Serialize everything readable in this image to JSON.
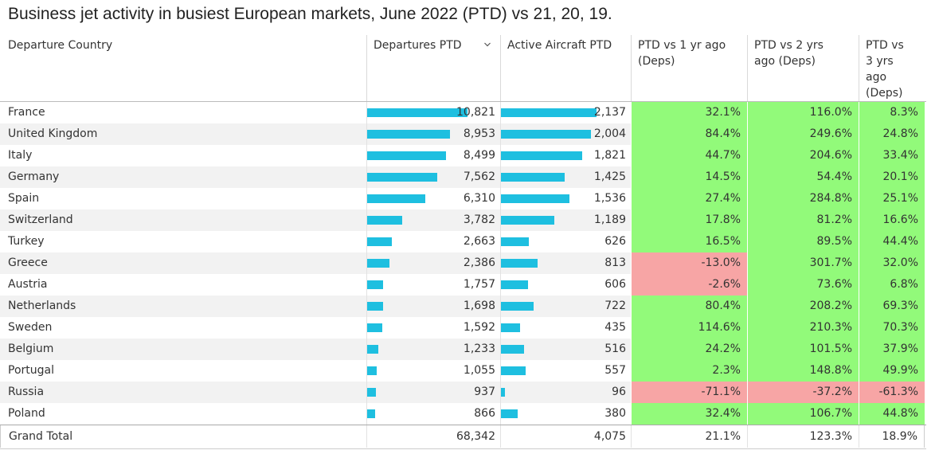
{
  "title": "Business jet activity in busiest European markets, June 2022 (PTD) vs 21, 20, 19.",
  "colors": {
    "bar": "#1ebfe0",
    "positive": "#92fa7a",
    "negative": "#f7a5a5"
  },
  "headers": {
    "country": "Departure Country",
    "departures": "Departures PTD",
    "aircraft": "Active Aircraft PTD",
    "vs1": [
      "PTD vs 1 yr ago",
      "(Deps)"
    ],
    "vs2": [
      "PTD vs 2 yrs",
      "ago (Deps)"
    ],
    "vs3": [
      "PTD vs",
      "3 yrs",
      "ago",
      "(Deps)"
    ]
  },
  "sort_icon": "chevron-down-icon",
  "chart_data": {
    "type": "table",
    "title": "Business jet activity in busiest European markets, June 2022 (PTD) vs 21, 20, 19.",
    "columns": [
      "Departure Country",
      "Departures PTD",
      "Active Aircraft PTD",
      "PTD vs 1 yr ago (Deps)",
      "PTD vs 2 yrs ago (Deps)",
      "PTD vs 3 yrs ago (Deps)"
    ],
    "rows": [
      {
        "country": "France",
        "departures": 10821,
        "departures_label": "10,821",
        "aircraft": 2137,
        "aircraft_label": "2,137",
        "vs1": "32.1%",
        "vs2": "116.0%",
        "vs3": "8.3%"
      },
      {
        "country": "United Kingdom",
        "departures": 8953,
        "departures_label": "8,953",
        "aircraft": 2004,
        "aircraft_label": "2,004",
        "vs1": "84.4%",
        "vs2": "249.6%",
        "vs3": "24.8%"
      },
      {
        "country": "Italy",
        "departures": 8499,
        "departures_label": "8,499",
        "aircraft": 1821,
        "aircraft_label": "1,821",
        "vs1": "44.7%",
        "vs2": "204.6%",
        "vs3": "33.4%"
      },
      {
        "country": "Germany",
        "departures": 7562,
        "departures_label": "7,562",
        "aircraft": 1425,
        "aircraft_label": "1,425",
        "vs1": "14.5%",
        "vs2": "54.4%",
        "vs3": "20.1%"
      },
      {
        "country": "Spain",
        "departures": 6310,
        "departures_label": "6,310",
        "aircraft": 1536,
        "aircraft_label": "1,536",
        "vs1": "27.4%",
        "vs2": "284.8%",
        "vs3": "25.1%"
      },
      {
        "country": "Switzerland",
        "departures": 3782,
        "departures_label": "3,782",
        "aircraft": 1189,
        "aircraft_label": "1,189",
        "vs1": "17.8%",
        "vs2": "81.2%",
        "vs3": "16.6%"
      },
      {
        "country": "Turkey",
        "departures": 2663,
        "departures_label": "2,663",
        "aircraft": 626,
        "aircraft_label": "626",
        "vs1": "16.5%",
        "vs2": "89.5%",
        "vs3": "44.4%"
      },
      {
        "country": "Greece",
        "departures": 2386,
        "departures_label": "2,386",
        "aircraft": 813,
        "aircraft_label": "813",
        "vs1": "-13.0%",
        "vs2": "301.7%",
        "vs3": "32.0%"
      },
      {
        "country": "Austria",
        "departures": 1757,
        "departures_label": "1,757",
        "aircraft": 606,
        "aircraft_label": "606",
        "vs1": "-2.6%",
        "vs2": "73.6%",
        "vs3": "6.8%"
      },
      {
        "country": "Netherlands",
        "departures": 1698,
        "departures_label": "1,698",
        "aircraft": 722,
        "aircraft_label": "722",
        "vs1": "80.4%",
        "vs2": "208.2%",
        "vs3": "69.3%"
      },
      {
        "country": "Sweden",
        "departures": 1592,
        "departures_label": "1,592",
        "aircraft": 435,
        "aircraft_label": "435",
        "vs1": "114.6%",
        "vs2": "210.3%",
        "vs3": "70.3%"
      },
      {
        "country": "Belgium",
        "departures": 1233,
        "departures_label": "1,233",
        "aircraft": 516,
        "aircraft_label": "516",
        "vs1": "24.2%",
        "vs2": "101.5%",
        "vs3": "37.9%"
      },
      {
        "country": "Portugal",
        "departures": 1055,
        "departures_label": "1,055",
        "aircraft": 557,
        "aircraft_label": "557",
        "vs1": "2.3%",
        "vs2": "148.8%",
        "vs3": "49.9%"
      },
      {
        "country": "Russia",
        "departures": 937,
        "departures_label": "937",
        "aircraft": 96,
        "aircraft_label": "96",
        "vs1": "-71.1%",
        "vs2": "-37.2%",
        "vs3": "-61.3%"
      },
      {
        "country": "Poland",
        "departures": 866,
        "departures_label": "866",
        "aircraft": 380,
        "aircraft_label": "380",
        "vs1": "32.4%",
        "vs2": "106.7%",
        "vs3": "44.8%"
      }
    ],
    "total": {
      "country": "Grand Total",
      "departures": "68,342",
      "aircraft": "4,075",
      "vs1": "21.1%",
      "vs2": "123.3%",
      "vs3": "18.9%"
    }
  }
}
